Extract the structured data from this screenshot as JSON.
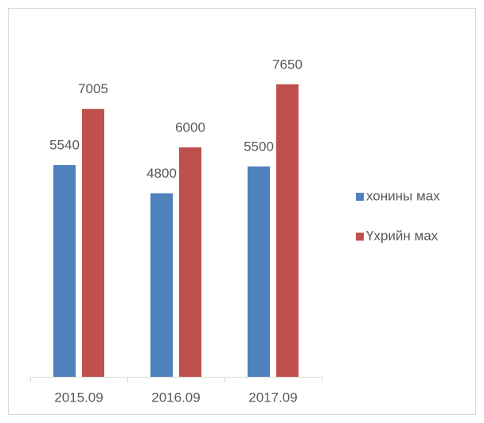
{
  "chart_data": {
    "type": "bar",
    "categories": [
      "2015.09",
      "2016.09",
      "2017.09"
    ],
    "series": [
      {
        "name": "хонины мах",
        "color": "#4f81bd",
        "values": [
          5540,
          4800,
          5500
        ]
      },
      {
        "name": "Үхрийн мах",
        "color": "#c0504d",
        "values": [
          7005,
          6000,
          7650
        ]
      }
    ],
    "ylim": [
      0,
      9000
    ],
    "legend": "right"
  }
}
